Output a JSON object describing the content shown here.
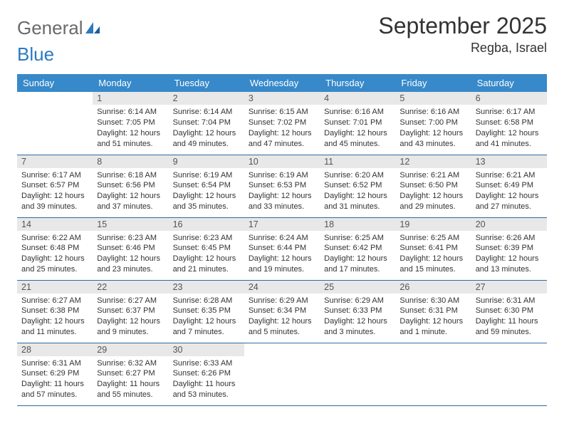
{
  "logo": {
    "part1": "General",
    "part2": "Blue"
  },
  "title": "September 2025",
  "location": "Regba, Israel",
  "colors": {
    "header_bg": "#3789c9",
    "header_text": "#ffffff",
    "daynum_bg": "#e8e8e8",
    "border": "#2f6aa3",
    "logo_gray": "#6a6a6a",
    "logo_blue": "#2a7ac0"
  },
  "weekdays": [
    "Sunday",
    "Monday",
    "Tuesday",
    "Wednesday",
    "Thursday",
    "Friday",
    "Saturday"
  ],
  "weeks": [
    [
      null,
      {
        "n": "1",
        "sr": "6:14 AM",
        "ss": "7:05 PM",
        "dl": "12 hours and 51 minutes."
      },
      {
        "n": "2",
        "sr": "6:14 AM",
        "ss": "7:04 PM",
        "dl": "12 hours and 49 minutes."
      },
      {
        "n": "3",
        "sr": "6:15 AM",
        "ss": "7:02 PM",
        "dl": "12 hours and 47 minutes."
      },
      {
        "n": "4",
        "sr": "6:16 AM",
        "ss": "7:01 PM",
        "dl": "12 hours and 45 minutes."
      },
      {
        "n": "5",
        "sr": "6:16 AM",
        "ss": "7:00 PM",
        "dl": "12 hours and 43 minutes."
      },
      {
        "n": "6",
        "sr": "6:17 AM",
        "ss": "6:58 PM",
        "dl": "12 hours and 41 minutes."
      }
    ],
    [
      {
        "n": "7",
        "sr": "6:17 AM",
        "ss": "6:57 PM",
        "dl": "12 hours and 39 minutes."
      },
      {
        "n": "8",
        "sr": "6:18 AM",
        "ss": "6:56 PM",
        "dl": "12 hours and 37 minutes."
      },
      {
        "n": "9",
        "sr": "6:19 AM",
        "ss": "6:54 PM",
        "dl": "12 hours and 35 minutes."
      },
      {
        "n": "10",
        "sr": "6:19 AM",
        "ss": "6:53 PM",
        "dl": "12 hours and 33 minutes."
      },
      {
        "n": "11",
        "sr": "6:20 AM",
        "ss": "6:52 PM",
        "dl": "12 hours and 31 minutes."
      },
      {
        "n": "12",
        "sr": "6:21 AM",
        "ss": "6:50 PM",
        "dl": "12 hours and 29 minutes."
      },
      {
        "n": "13",
        "sr": "6:21 AM",
        "ss": "6:49 PM",
        "dl": "12 hours and 27 minutes."
      }
    ],
    [
      {
        "n": "14",
        "sr": "6:22 AM",
        "ss": "6:48 PM",
        "dl": "12 hours and 25 minutes."
      },
      {
        "n": "15",
        "sr": "6:23 AM",
        "ss": "6:46 PM",
        "dl": "12 hours and 23 minutes."
      },
      {
        "n": "16",
        "sr": "6:23 AM",
        "ss": "6:45 PM",
        "dl": "12 hours and 21 minutes."
      },
      {
        "n": "17",
        "sr": "6:24 AM",
        "ss": "6:44 PM",
        "dl": "12 hours and 19 minutes."
      },
      {
        "n": "18",
        "sr": "6:25 AM",
        "ss": "6:42 PM",
        "dl": "12 hours and 17 minutes."
      },
      {
        "n": "19",
        "sr": "6:25 AM",
        "ss": "6:41 PM",
        "dl": "12 hours and 15 minutes."
      },
      {
        "n": "20",
        "sr": "6:26 AM",
        "ss": "6:39 PM",
        "dl": "12 hours and 13 minutes."
      }
    ],
    [
      {
        "n": "21",
        "sr": "6:27 AM",
        "ss": "6:38 PM",
        "dl": "12 hours and 11 minutes."
      },
      {
        "n": "22",
        "sr": "6:27 AM",
        "ss": "6:37 PM",
        "dl": "12 hours and 9 minutes."
      },
      {
        "n": "23",
        "sr": "6:28 AM",
        "ss": "6:35 PM",
        "dl": "12 hours and 7 minutes."
      },
      {
        "n": "24",
        "sr": "6:29 AM",
        "ss": "6:34 PM",
        "dl": "12 hours and 5 minutes."
      },
      {
        "n": "25",
        "sr": "6:29 AM",
        "ss": "6:33 PM",
        "dl": "12 hours and 3 minutes."
      },
      {
        "n": "26",
        "sr": "6:30 AM",
        "ss": "6:31 PM",
        "dl": "12 hours and 1 minute."
      },
      {
        "n": "27",
        "sr": "6:31 AM",
        "ss": "6:30 PM",
        "dl": "11 hours and 59 minutes."
      }
    ],
    [
      {
        "n": "28",
        "sr": "6:31 AM",
        "ss": "6:29 PM",
        "dl": "11 hours and 57 minutes."
      },
      {
        "n": "29",
        "sr": "6:32 AM",
        "ss": "6:27 PM",
        "dl": "11 hours and 55 minutes."
      },
      {
        "n": "30",
        "sr": "6:33 AM",
        "ss": "6:26 PM",
        "dl": "11 hours and 53 minutes."
      },
      null,
      null,
      null,
      null
    ]
  ],
  "labels": {
    "sunrise": "Sunrise:",
    "sunset": "Sunset:",
    "daylight": "Daylight:"
  }
}
